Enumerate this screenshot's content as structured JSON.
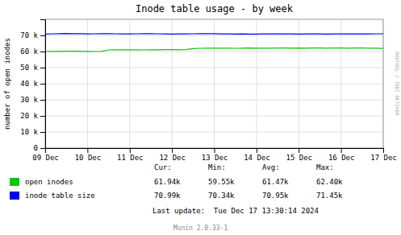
{
  "chart_data": {
    "type": "line",
    "title": "Inode table usage - by week",
    "y_label": "number of open inodes",
    "categories": [
      "09 Dec",
      null,
      null,
      null,
      null,
      null,
      "10 Dec",
      null,
      null,
      null,
      null,
      null,
      "11 Dec",
      null,
      null,
      null,
      null,
      null,
      "12 Dec",
      null,
      null,
      null,
      null,
      null,
      "13 Dec",
      null,
      null,
      null,
      null,
      null,
      "14 Dec",
      null,
      null,
      null,
      null,
      null,
      "15 Dec",
      null,
      null,
      null,
      null,
      null,
      "16 Dec",
      null,
      null,
      null,
      null,
      null,
      "17 Dec"
    ],
    "ylim": [
      0,
      80000
    ],
    "yticks": [
      0,
      {
        "value": 10000,
        "label": "10 k"
      },
      {
        "value": 20000,
        "label": "20 k"
      },
      {
        "value": 30000,
        "label": "30 k"
      },
      {
        "value": 40000,
        "label": "40 k"
      },
      {
        "value": 50000,
        "label": "50 k"
      },
      {
        "value": 60000,
        "label": "60 k"
      },
      {
        "value": 70000,
        "label": "70 k"
      }
    ],
    "grid": true,
    "stats_header": [
      "Cur:",
      "Min:",
      "Avg:",
      "Max:"
    ],
    "series": [
      {
        "name": "open inodes",
        "color": "#00cc00",
        "stats": [
          "61.94k",
          "59.55k",
          "61.47k",
          "62.40k"
        ],
        "values": [
          60000,
          60050,
          60100,
          60200,
          60150,
          60100,
          60050,
          60000,
          60050,
          61000,
          61100,
          61050,
          61100,
          61050,
          61000,
          61050,
          61100,
          61150,
          61200,
          61100,
          61200,
          61800,
          62000,
          62100,
          62050,
          62100,
          62050,
          62000,
          62100,
          62150,
          62100,
          62050,
          62100,
          62200,
          62150,
          62100,
          62200,
          62100,
          62150,
          62200,
          62100,
          62200,
          62150,
          62100,
          62200,
          62150,
          62100,
          62050,
          61940
        ]
      },
      {
        "name": "inode table size",
        "color": "#0000ff",
        "stats": [
          "70.99k",
          "70.34k",
          "70.95k",
          "71.45k"
        ],
        "values": [
          70800,
          71000,
          71100,
          71200,
          71100,
          71050,
          70900,
          71000,
          71050,
          71100,
          71000,
          70950,
          70900,
          71000,
          71050,
          71100,
          71000,
          70950,
          70800,
          70900,
          70950,
          71000,
          71050,
          71100,
          71050,
          70950,
          70900,
          70800,
          70900,
          70850,
          70800,
          70900,
          70950,
          71000,
          70950,
          70900,
          70850,
          70900,
          70950,
          70900,
          70850,
          70900,
          70950,
          71000,
          70950,
          70900,
          70950,
          71000,
          70990
        ]
      }
    ],
    "last_update": "Last update:  Tue Dec 17 13:30:14 2024",
    "footer": "Munin 2.0.33-1",
    "watermark": "RRDTOOL / TOBI OETIKER"
  }
}
